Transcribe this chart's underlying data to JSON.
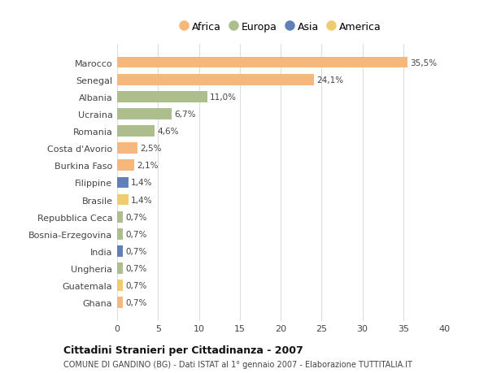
{
  "countries": [
    "Marocco",
    "Senegal",
    "Albania",
    "Ucraina",
    "Romania",
    "Costa d'Avorio",
    "Burkina Faso",
    "Filippine",
    "Brasile",
    "Repubblica Ceca",
    "Bosnia-Erzegovina",
    "India",
    "Ungheria",
    "Guatemala",
    "Ghana"
  ],
  "values": [
    35.5,
    24.1,
    11.0,
    6.7,
    4.6,
    2.5,
    2.1,
    1.4,
    1.4,
    0.7,
    0.7,
    0.7,
    0.7,
    0.7,
    0.7
  ],
  "labels": [
    "35,5%",
    "24,1%",
    "11,0%",
    "6,7%",
    "4,6%",
    "2,5%",
    "2,1%",
    "1,4%",
    "1,4%",
    "0,7%",
    "0,7%",
    "0,7%",
    "0,7%",
    "0,7%",
    "0,7%"
  ],
  "continents": [
    "Africa",
    "Africa",
    "Europa",
    "Europa",
    "Europa",
    "Africa",
    "Africa",
    "Asia",
    "America",
    "Europa",
    "Europa",
    "Asia",
    "Europa",
    "America",
    "Africa"
  ],
  "continent_colors": {
    "Africa": "#F5B87A",
    "Europa": "#ABBE8C",
    "Asia": "#6080B8",
    "America": "#F0CC70"
  },
  "legend_order": [
    "Africa",
    "Europa",
    "Asia",
    "America"
  ],
  "xlim": [
    0,
    40
  ],
  "xticks": [
    0,
    5,
    10,
    15,
    20,
    25,
    30,
    35,
    40
  ],
  "title": "Cittadini Stranieri per Cittadinanza - 2007",
  "subtitle": "COMUNE DI GANDINO (BG) - Dati ISTAT al 1° gennaio 2007 - Elaborazione TUTTITALIA.IT",
  "background_color": "#ffffff",
  "grid_color": "#dddddd",
  "bar_height": 0.65
}
